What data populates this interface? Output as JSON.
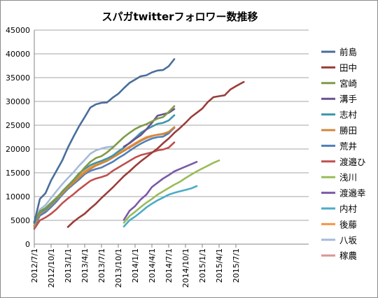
{
  "chart_data": {
    "type": "line",
    "title": "スパガtwitterフォロワー数推移",
    "xlabel": "",
    "ylabel": "",
    "ylim": [
      0,
      45000
    ],
    "y_ticks": [
      0,
      5000,
      10000,
      15000,
      20000,
      25000,
      30000,
      35000,
      40000,
      45000
    ],
    "y_tick_labels": [
      "0",
      "5000",
      "10000",
      "15000",
      "20000",
      "25000",
      "30000",
      "35000",
      "40000",
      "45000"
    ],
    "x_tick_labels": [
      "2012/7/1",
      "2012/10/1",
      "2013/1/1",
      "2013/4/1",
      "2013/7/1",
      "2013/10/1",
      "2014/1/1",
      "2014/4/1",
      "2014/7/1",
      "2014/10/1",
      "2015/1/1",
      "2015/4/1",
      "2015/7/1"
    ],
    "x_unit": "month index (0 = 2012/7/1)",
    "xlim": [
      0,
      37.4
    ],
    "grid": "horizontal",
    "legend_position": "right",
    "series": [
      {
        "name": "前島",
        "color": "#4a6e9b",
        "points": [
          [
            0,
            4600
          ],
          [
            1,
            9500
          ],
          [
            2,
            10700
          ],
          [
            3,
            13400
          ],
          [
            4,
            15500
          ],
          [
            5,
            17600
          ],
          [
            6,
            20300
          ],
          [
            7,
            22600
          ],
          [
            8,
            24800
          ],
          [
            9,
            26700
          ],
          [
            10,
            28700
          ],
          [
            11,
            29400
          ],
          [
            12,
            29700
          ],
          [
            13,
            29800
          ],
          [
            14,
            30800
          ],
          [
            15,
            31600
          ],
          [
            16,
            32800
          ],
          [
            17,
            33900
          ],
          [
            18,
            34600
          ],
          [
            19,
            35300
          ],
          [
            20,
            35500
          ],
          [
            21,
            36100
          ],
          [
            22,
            36500
          ],
          [
            23,
            36600
          ],
          [
            24,
            37400
          ],
          [
            25,
            38900
          ]
        ]
      },
      {
        "name": "田中",
        "color": "#9b3d3a",
        "points": [
          [
            6,
            3600
          ],
          [
            7,
            4700
          ],
          [
            8,
            5600
          ],
          [
            9,
            6400
          ],
          [
            10,
            7500
          ],
          [
            11,
            8500
          ],
          [
            12,
            9700
          ],
          [
            13,
            10800
          ],
          [
            14,
            11900
          ],
          [
            15,
            13100
          ],
          [
            16,
            14300
          ],
          [
            17,
            15300
          ],
          [
            18,
            16400
          ],
          [
            19,
            17400
          ],
          [
            20,
            18300
          ],
          [
            21,
            19200
          ],
          [
            22,
            20100
          ],
          [
            23,
            21200
          ],
          [
            24,
            22200
          ],
          [
            25,
            23400
          ],
          [
            26,
            24400
          ],
          [
            27,
            25500
          ],
          [
            28,
            26700
          ],
          [
            29,
            27600
          ],
          [
            30,
            28500
          ],
          [
            31,
            29900
          ],
          [
            32,
            30900
          ],
          [
            33,
            31100
          ],
          [
            34,
            31300
          ],
          [
            35,
            32500
          ],
          [
            36,
            33200
          ],
          [
            37.4,
            34100
          ]
        ]
      },
      {
        "name": "宮崎",
        "color": "#7f9a48",
        "points": [
          [
            0,
            4700
          ],
          [
            1,
            6900
          ],
          [
            2,
            7600
          ],
          [
            3,
            8700
          ],
          [
            4,
            9800
          ],
          [
            5,
            11000
          ],
          [
            6,
            12300
          ],
          [
            7,
            13400
          ],
          [
            8,
            14700
          ],
          [
            9,
            16100
          ],
          [
            10,
            17300
          ],
          [
            11,
            18100
          ],
          [
            12,
            18500
          ],
          [
            13,
            19300
          ],
          [
            14,
            20300
          ],
          [
            15,
            21400
          ],
          [
            16,
            22500
          ],
          [
            17,
            23400
          ],
          [
            18,
            24200
          ],
          [
            19,
            24800
          ],
          [
            20,
            25200
          ],
          [
            21,
            25800
          ],
          [
            22,
            26400
          ],
          [
            23,
            26700
          ],
          [
            24,
            27800
          ],
          [
            25,
            29000
          ]
        ]
      },
      {
        "name": "溝手",
        "color": "#6a5291",
        "points": [
          [
            16,
            20500
          ],
          [
            17,
            21200
          ],
          [
            18,
            22100
          ],
          [
            19,
            22900
          ],
          [
            20,
            24100
          ],
          [
            21,
            25500
          ],
          [
            22,
            27000
          ],
          [
            23,
            27300
          ],
          [
            24,
            27600
          ],
          [
            25,
            28400
          ]
        ]
      },
      {
        "name": "志村",
        "color": "#3f95aa",
        "points": [
          [
            0,
            4400
          ],
          [
            1,
            6800
          ],
          [
            2,
            7300
          ],
          [
            3,
            8500
          ],
          [
            4,
            9600
          ],
          [
            5,
            11100
          ],
          [
            6,
            12300
          ],
          [
            7,
            13500
          ],
          [
            8,
            14900
          ],
          [
            9,
            15800
          ],
          [
            10,
            16600
          ],
          [
            11,
            17100
          ],
          [
            12,
            17500
          ],
          [
            13,
            18000
          ],
          [
            14,
            18600
          ],
          [
            15,
            19500
          ],
          [
            16,
            20300
          ],
          [
            17,
            21300
          ],
          [
            18,
            22300
          ],
          [
            19,
            23400
          ],
          [
            20,
            24100
          ],
          [
            21,
            24700
          ],
          [
            22,
            25300
          ],
          [
            23,
            25500
          ],
          [
            24,
            26000
          ],
          [
            25,
            27100
          ]
        ]
      },
      {
        "name": "勝田",
        "color": "#d0883c",
        "points": [
          [
            0,
            3800
          ],
          [
            1,
            6500
          ],
          [
            2,
            7100
          ],
          [
            3,
            8200
          ],
          [
            4,
            9400
          ],
          [
            5,
            10700
          ],
          [
            6,
            11900
          ],
          [
            7,
            12900
          ],
          [
            8,
            14000
          ],
          [
            9,
            15000
          ],
          [
            10,
            15800
          ],
          [
            11,
            16500
          ],
          [
            12,
            17000
          ],
          [
            13,
            17500
          ],
          [
            14,
            18200
          ],
          [
            15,
            18900
          ],
          [
            16,
            19600
          ],
          [
            17,
            20300
          ],
          [
            18,
            21000
          ],
          [
            19,
            21700
          ],
          [
            20,
            22300
          ],
          [
            21,
            22700
          ],
          [
            22,
            23000
          ],
          [
            23,
            23200
          ],
          [
            24,
            23600
          ],
          [
            25,
            24600
          ]
        ]
      },
      {
        "name": "荒井",
        "color": "#4f7fba",
        "points": [
          [
            0,
            3600
          ],
          [
            1,
            6000
          ],
          [
            2,
            6700
          ],
          [
            3,
            7800
          ],
          [
            4,
            9000
          ],
          [
            5,
            10400
          ],
          [
            6,
            11600
          ],
          [
            7,
            12600
          ],
          [
            8,
            13600
          ],
          [
            9,
            14700
          ],
          [
            10,
            15400
          ],
          [
            11,
            15800
          ],
          [
            12,
            16100
          ],
          [
            13,
            16700
          ],
          [
            14,
            17300
          ],
          [
            15,
            18100
          ],
          [
            16,
            18800
          ],
          [
            17,
            19600
          ],
          [
            18,
            20400
          ],
          [
            19,
            21100
          ],
          [
            20,
            21700
          ],
          [
            21,
            22200
          ],
          [
            22,
            22500
          ],
          [
            23,
            22600
          ],
          [
            24,
            23300
          ],
          [
            25,
            24500
          ]
        ]
      },
      {
        "name": "渡邉ひ",
        "color": "#c0504d",
        "points": [
          [
            0,
            3200
          ],
          [
            1,
            5000
          ],
          [
            2,
            5600
          ],
          [
            3,
            6400
          ],
          [
            4,
            7400
          ],
          [
            5,
            8600
          ],
          [
            6,
            9600
          ],
          [
            7,
            10500
          ],
          [
            8,
            11500
          ],
          [
            9,
            12400
          ],
          [
            10,
            13300
          ],
          [
            11,
            13800
          ],
          [
            12,
            14100
          ],
          [
            13,
            14500
          ],
          [
            14,
            15400
          ],
          [
            15,
            16100
          ],
          [
            16,
            16800
          ],
          [
            17,
            17500
          ],
          [
            18,
            18200
          ],
          [
            19,
            18700
          ],
          [
            20,
            19000
          ],
          [
            21,
            19300
          ],
          [
            22,
            19700
          ],
          [
            23,
            19900
          ],
          [
            24,
            20300
          ],
          [
            25,
            21400
          ]
        ]
      },
      {
        "name": "浅川",
        "color": "#9bbb59",
        "points": [
          [
            16,
            4500
          ],
          [
            17,
            5900
          ],
          [
            18,
            6800
          ],
          [
            19,
            7800
          ],
          [
            20,
            8700
          ],
          [
            21,
            9500
          ],
          [
            22,
            10400
          ],
          [
            23,
            11100
          ],
          [
            24,
            11800
          ],
          [
            25,
            12500
          ],
          [
            26,
            13100
          ],
          [
            27,
            13900
          ],
          [
            28,
            14600
          ],
          [
            29,
            15300
          ],
          [
            30,
            15900
          ],
          [
            31,
            16500
          ],
          [
            32,
            17100
          ],
          [
            33,
            17600
          ]
        ]
      },
      {
        "name": "渡邉幸",
        "color": "#7a5aa6",
        "points": [
          [
            16,
            5100
          ],
          [
            17,
            7000
          ],
          [
            18,
            8000
          ],
          [
            19,
            9400
          ],
          [
            20,
            10400
          ],
          [
            21,
            12000
          ],
          [
            22,
            12900
          ],
          [
            23,
            13800
          ],
          [
            24,
            14500
          ],
          [
            25,
            15300
          ],
          [
            26,
            15800
          ],
          [
            27,
            16300
          ],
          [
            28,
            16800
          ],
          [
            29,
            17300
          ]
        ]
      },
      {
        "name": "内村",
        "color": "#4bacc6",
        "points": [
          [
            16,
            3700
          ],
          [
            17,
            5000
          ],
          [
            18,
            5800
          ],
          [
            19,
            6700
          ],
          [
            20,
            7700
          ],
          [
            21,
            8500
          ],
          [
            22,
            9200
          ],
          [
            23,
            9800
          ],
          [
            24,
            10400
          ],
          [
            25,
            10800
          ],
          [
            26,
            11100
          ],
          [
            27,
            11400
          ],
          [
            28,
            11700
          ],
          [
            29,
            12200
          ]
        ]
      },
      {
        "name": "後藤",
        "color": "#f79646",
        "points": [
          [
            0,
            4000
          ],
          [
            1,
            6600
          ],
          [
            2,
            7300
          ],
          [
            3,
            8400
          ],
          [
            4,
            9600
          ],
          [
            5,
            11000
          ],
          [
            6,
            12100
          ],
          [
            7,
            13200
          ],
          [
            8,
            14300
          ],
          [
            9,
            15300
          ],
          [
            10,
            16100
          ],
          [
            11,
            16800
          ],
          [
            12,
            17300
          ],
          [
            13,
            17800
          ],
          [
            14,
            18400
          ],
          [
            15,
            19100
          ],
          [
            16,
            19800
          ],
          [
            17,
            20500
          ],
          [
            18,
            21200
          ],
          [
            19,
            21900
          ],
          [
            20,
            22500
          ],
          [
            21,
            22800
          ],
          [
            22,
            23000
          ],
          [
            23,
            23100
          ],
          [
            24,
            23500
          ],
          [
            25,
            24400
          ]
        ]
      },
      {
        "name": "八坂",
        "color": "#a5bbd9",
        "points": [
          [
            0,
            4800
          ],
          [
            1,
            7300
          ],
          [
            2,
            8200
          ],
          [
            3,
            9700
          ],
          [
            4,
            11200
          ],
          [
            5,
            12600
          ],
          [
            6,
            13900
          ],
          [
            7,
            15100
          ],
          [
            8,
            16500
          ],
          [
            9,
            17700
          ],
          [
            10,
            19000
          ],
          [
            11,
            19700
          ],
          [
            12,
            20100
          ],
          [
            13,
            20400
          ],
          [
            14,
            20500
          ]
        ]
      },
      {
        "name": "稼農",
        "color": "#d99795",
        "points": [
          [
            0,
            3900
          ],
          [
            1,
            6100
          ],
          [
            2,
            6900
          ],
          [
            3,
            7900
          ],
          [
            4,
            9200
          ],
          [
            5,
            10600
          ],
          [
            6,
            11800
          ]
        ]
      }
    ]
  }
}
